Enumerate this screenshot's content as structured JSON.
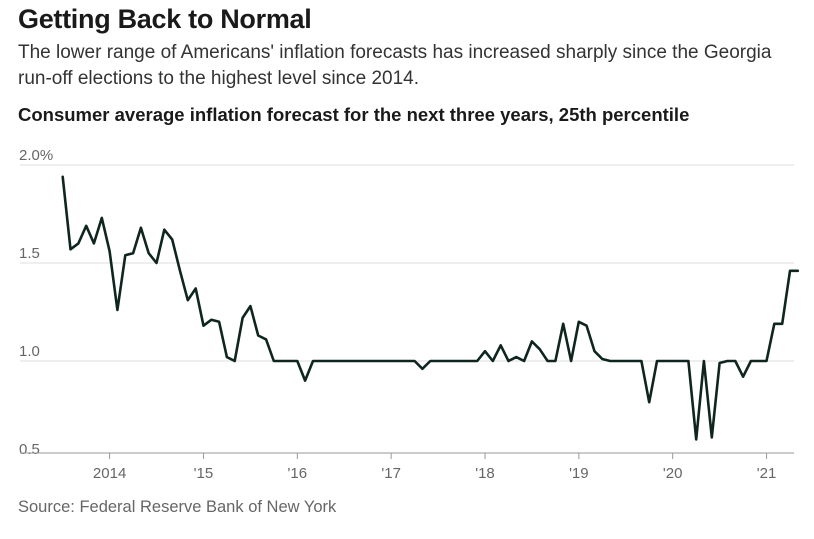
{
  "headline": "Getting Back to Normal",
  "dek": "The lower range of Americans' inflation forecasts has increased sharply since the Georgia run-off elections to the highest level since 2014.",
  "source": "Source: Federal Reserve Bank of New York",
  "colors": {
    "line": "#0f2620",
    "grid": "#dddddd",
    "axis": "#999999",
    "text_muted": "#666666"
  },
  "chart_data": {
    "type": "line",
    "title": "Consumer average inflation forecast for the next three years, 25th percentile",
    "xlabel": "",
    "ylabel": "",
    "ylim": [
      0.5,
      2.0
    ],
    "yticks": [
      {
        "value": 2.0,
        "label": "2.0%"
      },
      {
        "value": 1.5,
        "label": "1.5"
      },
      {
        "value": 1.0,
        "label": "1.0"
      },
      {
        "value": 0.5,
        "label": "0.5"
      }
    ],
    "xlim": [
      2013.45,
      2021.25
    ],
    "xticks": [
      {
        "value": 2014,
        "label": "2014"
      },
      {
        "value": 2015,
        "label": "'15"
      },
      {
        "value": 2016,
        "label": "'16"
      },
      {
        "value": 2017,
        "label": "'17"
      },
      {
        "value": 2018,
        "label": "'18"
      },
      {
        "value": 2019,
        "label": "'19"
      },
      {
        "value": 2020,
        "label": "'20"
      },
      {
        "value": 2021,
        "label": "'21"
      }
    ],
    "grid": true,
    "series": [
      {
        "values": [
          [
            2013.5,
            1.94
          ],
          [
            2013.583,
            1.57
          ],
          [
            2013.667,
            1.6
          ],
          [
            2013.75,
            1.69
          ],
          [
            2013.833,
            1.6
          ],
          [
            2013.917,
            1.73
          ],
          [
            2014.0,
            1.56
          ],
          [
            2014.083,
            1.26
          ],
          [
            2014.167,
            1.54
          ],
          [
            2014.25,
            1.55
          ],
          [
            2014.333,
            1.68
          ],
          [
            2014.417,
            1.55
          ],
          [
            2014.5,
            1.5
          ],
          [
            2014.583,
            1.67
          ],
          [
            2014.667,
            1.62
          ],
          [
            2014.75,
            1.46
          ],
          [
            2014.833,
            1.31
          ],
          [
            2014.917,
            1.37
          ],
          [
            2015.0,
            1.18
          ],
          [
            2015.083,
            1.21
          ],
          [
            2015.167,
            1.2
          ],
          [
            2015.25,
            1.02
          ],
          [
            2015.333,
            1.0
          ],
          [
            2015.417,
            1.22
          ],
          [
            2015.5,
            1.28
          ],
          [
            2015.583,
            1.13
          ],
          [
            2015.667,
            1.11
          ],
          [
            2015.75,
            1.0
          ],
          [
            2015.833,
            1.0
          ],
          [
            2015.917,
            1.0
          ],
          [
            2016.0,
            1.0
          ],
          [
            2016.083,
            0.9
          ],
          [
            2016.167,
            1.0
          ],
          [
            2016.25,
            1.0
          ],
          [
            2016.333,
            1.0
          ],
          [
            2016.417,
            1.0
          ],
          [
            2016.5,
            1.0
          ],
          [
            2016.583,
            1.0
          ],
          [
            2016.667,
            1.0
          ],
          [
            2016.75,
            1.0
          ],
          [
            2016.833,
            1.0
          ],
          [
            2016.917,
            1.0
          ],
          [
            2017.0,
            1.0
          ],
          [
            2017.083,
            1.0
          ],
          [
            2017.167,
            1.0
          ],
          [
            2017.25,
            1.0
          ],
          [
            2017.333,
            0.96
          ],
          [
            2017.417,
            1.0
          ],
          [
            2017.5,
            1.0
          ],
          [
            2017.583,
            1.0
          ],
          [
            2017.667,
            1.0
          ],
          [
            2017.75,
            1.0
          ],
          [
            2017.833,
            1.0
          ],
          [
            2017.917,
            1.0
          ],
          [
            2018.0,
            1.05
          ],
          [
            2018.083,
            1.0
          ],
          [
            2018.167,
            1.08
          ],
          [
            2018.25,
            1.0
          ],
          [
            2018.333,
            1.02
          ],
          [
            2018.417,
            1.0
          ],
          [
            2018.5,
            1.1
          ],
          [
            2018.583,
            1.06
          ],
          [
            2018.667,
            1.0
          ],
          [
            2018.75,
            1.0
          ],
          [
            2018.833,
            1.19
          ],
          [
            2018.917,
            1.0
          ],
          [
            2019.0,
            1.2
          ],
          [
            2019.083,
            1.18
          ],
          [
            2019.167,
            1.05
          ],
          [
            2019.25,
            1.01
          ],
          [
            2019.333,
            1.0
          ],
          [
            2019.417,
            1.0
          ],
          [
            2019.5,
            1.0
          ],
          [
            2019.583,
            1.0
          ],
          [
            2019.667,
            1.0
          ],
          [
            2019.75,
            0.79
          ],
          [
            2019.833,
            1.0
          ],
          [
            2019.917,
            1.0
          ],
          [
            2020.0,
            1.0
          ],
          [
            2020.083,
            1.0
          ],
          [
            2020.167,
            1.0
          ],
          [
            2020.25,
            0.6
          ],
          [
            2020.333,
            1.0
          ],
          [
            2020.417,
            0.61
          ],
          [
            2020.5,
            0.99
          ],
          [
            2020.583,
            1.0
          ],
          [
            2020.667,
            1.0
          ],
          [
            2020.75,
            0.92
          ],
          [
            2020.833,
            1.0
          ],
          [
            2020.917,
            1.0
          ],
          [
            2021.0,
            1.0
          ],
          [
            2021.083,
            1.19
          ],
          [
            2021.167,
            1.19
          ],
          [
            2021.25,
            1.46
          ],
          [
            2021.333,
            1.46
          ]
        ]
      }
    ]
  }
}
